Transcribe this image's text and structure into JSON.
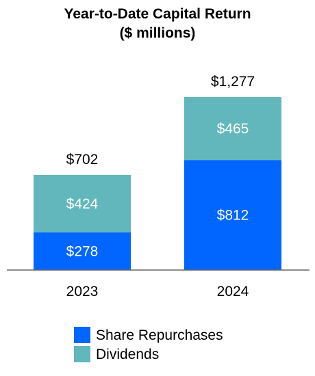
{
  "chart_data": {
    "type": "bar",
    "stacked": true,
    "title": [
      "Year-to-Date Capital Return",
      "($ millions)"
    ],
    "categories": [
      "2023",
      "2024"
    ],
    "series": [
      {
        "name": "Share Repurchases",
        "color": "#0066ff",
        "values": [
          278,
          812
        ],
        "labels": [
          "$278",
          "$812"
        ]
      },
      {
        "name": "Dividends",
        "color": "#62b7bc",
        "values": [
          424,
          465
        ],
        "labels": [
          "$424",
          "$465"
        ]
      }
    ],
    "totals": [
      702,
      1277
    ],
    "total_labels": [
      "$702",
      "$1,277"
    ],
    "ylim": [
      0,
      1277
    ],
    "grid": false,
    "legend_position": "bottom"
  }
}
